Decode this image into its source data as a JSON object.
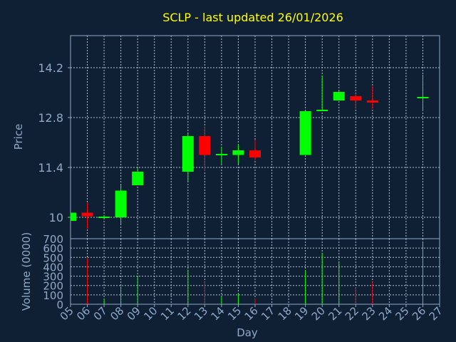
{
  "chart_data": {
    "type": "candlestick",
    "title": "SCLP - last updated 26/01/2026",
    "xlabel": "Day",
    "x_ticks": [
      "05",
      "06",
      "07",
      "08",
      "09",
      "10",
      "11",
      "12",
      "13",
      "14",
      "15",
      "16",
      "17",
      "18",
      "19",
      "20",
      "21",
      "22",
      "23",
      "24",
      "25",
      "26",
      "27"
    ],
    "price_panel": {
      "ylabel": "Price",
      "ylim": [
        9.4,
        15.1
      ],
      "y_ticks": [
        "10",
        "11.4",
        "12.8",
        "14.2"
      ],
      "y_tick_values": [
        10.0,
        11.4,
        12.8,
        14.2
      ],
      "grid": true,
      "candles": [
        {
          "day": 5,
          "open": 9.9,
          "close": 10.13,
          "high": 10.13,
          "low": 9.9
        },
        {
          "day": 6,
          "open": 10.13,
          "close": 10.03,
          "high": 10.4,
          "low": 9.68
        },
        {
          "day": 7,
          "open": 10.0,
          "close": 10.02,
          "high": 10.06,
          "low": 9.97
        },
        {
          "day": 8,
          "open": 10.0,
          "close": 10.75,
          "high": 10.9,
          "low": 9.82
        },
        {
          "day": 9,
          "open": 10.9,
          "close": 11.28,
          "high": 11.42,
          "low": 10.9
        },
        {
          "day": 12,
          "open": 11.28,
          "close": 12.28,
          "high": 12.35,
          "low": 11.0
        },
        {
          "day": 13,
          "open": 12.28,
          "close": 11.75,
          "high": 12.55,
          "low": 11.3
        },
        {
          "day": 14,
          "open": 11.75,
          "close": 11.78,
          "high": 11.98,
          "low": 11.5
        },
        {
          "day": 15,
          "open": 11.75,
          "close": 11.88,
          "high": 12.05,
          "low": 11.5
        },
        {
          "day": 16,
          "open": 11.88,
          "close": 11.68,
          "high": 12.18,
          "low": 11.6
        },
        {
          "day": 19,
          "open": 11.75,
          "close": 12.98,
          "high": 12.98,
          "low": 11.75
        },
        {
          "day": 20,
          "open": 12.98,
          "close": 13.02,
          "high": 13.98,
          "low": 12.98
        },
        {
          "day": 21,
          "open": 13.28,
          "close": 13.52,
          "high": 13.58,
          "low": 13.28
        },
        {
          "day": 22,
          "open": 13.4,
          "close": 13.28,
          "high": 13.48,
          "low": 13.05
        },
        {
          "day": 23,
          "open": 13.28,
          "close": 13.22,
          "high": 13.68,
          "low": 13.05
        },
        {
          "day": 26,
          "open": 13.35,
          "close": 13.38,
          "high": 14.0,
          "low": 12.98
        }
      ]
    },
    "volume_panel": {
      "ylabel": "Volume (0000)",
      "ylim": [
        0,
        700
      ],
      "y_ticks": [
        "0",
        "100",
        "200",
        "300",
        "400",
        "500",
        "600",
        "700"
      ],
      "y_tick_values": [
        0,
        100,
        200,
        300,
        400,
        500,
        600,
        700
      ],
      "grid": true,
      "bars": [
        {
          "day": 6,
          "volume": 490,
          "direction": "down"
        },
        {
          "day": 7,
          "volume": 60,
          "direction": "up"
        },
        {
          "day": 8,
          "volume": 190,
          "direction": "up"
        },
        {
          "day": 9,
          "volume": 300,
          "direction": "up"
        },
        {
          "day": 12,
          "volume": 370,
          "direction": "up"
        },
        {
          "day": 13,
          "volume": 250,
          "direction": "down"
        },
        {
          "day": 14,
          "volume": 80,
          "direction": "up"
        },
        {
          "day": 15,
          "volume": 110,
          "direction": "up"
        },
        {
          "day": 16,
          "volume": 60,
          "direction": "down"
        },
        {
          "day": 19,
          "volume": 360,
          "direction": "up"
        },
        {
          "day": 20,
          "volume": 550,
          "direction": "up"
        },
        {
          "day": 21,
          "volume": 460,
          "direction": "up"
        },
        {
          "day": 22,
          "volume": 180,
          "direction": "down"
        },
        {
          "day": 23,
          "volume": 240,
          "direction": "down"
        },
        {
          "day": 26,
          "volume": 660,
          "direction": "up"
        }
      ]
    },
    "colors": {
      "background": "#0f2034",
      "up": "#00ff00",
      "down": "#ff0000",
      "title": "#ffff00",
      "axis_text": "#8fa8c8",
      "grid": "#b4c3d2",
      "frame": "#8fa8c8"
    }
  }
}
